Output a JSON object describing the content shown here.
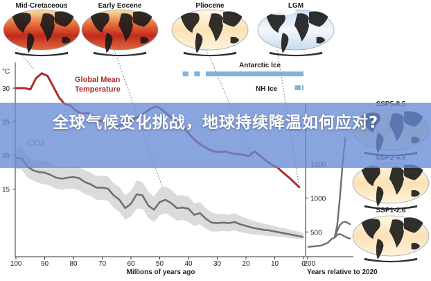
{
  "banner": {
    "title": "全球气候变化挑战，地球持续降温如何应对?"
  },
  "maps": [
    {
      "label": "Mid-Cretaceous",
      "style": "hot"
    },
    {
      "label": "Early Eocene",
      "style": "hot"
    },
    {
      "label": "Pliocene",
      "style": "warm"
    },
    {
      "label": "LGM",
      "style": "cold"
    },
    {
      "label": "SSP5-8.5",
      "style": "warm"
    },
    {
      "label": "SSP2-4.5",
      "style": "warm"
    },
    {
      "label": "SSP1-2.6",
      "style": "warm"
    }
  ],
  "chart_data": {
    "type": "line",
    "left_panel": {
      "xlabel": "Millions of years ago",
      "xticks": [
        100,
        90,
        80,
        70,
        60,
        50,
        40,
        30,
        20,
        10,
        0
      ],
      "xlim": [
        100,
        0
      ],
      "y_unit_label": "°C",
      "yticks": [
        30,
        25,
        20,
        15
      ],
      "ylim": [
        11.5,
        32.5
      ],
      "series": [
        {
          "name": "Global Mean Temperature",
          "color": "#b02a2a",
          "x": [
            100,
            97,
            95,
            93,
            91,
            89,
            87,
            85,
            83,
            81,
            79,
            77,
            75,
            73,
            71,
            69,
            67,
            65,
            63,
            61,
            59,
            57,
            55,
            53,
            51,
            49,
            47,
            45,
            43,
            41,
            39,
            37,
            35,
            33,
            31,
            29,
            27,
            25,
            23,
            21,
            19,
            17,
            15,
            13,
            11,
            9,
            7,
            5,
            3,
            1.5
          ],
          "y": [
            30,
            30,
            29.8,
            31.5,
            32.2,
            31.8,
            30.2,
            28.6,
            27.6,
            27.4,
            26.6,
            26.2,
            26.3,
            25.8,
            25.2,
            24.9,
            24.4,
            24.3,
            24.6,
            24.9,
            25.4,
            25.8,
            26.4,
            27.0,
            27.3,
            26.7,
            26.0,
            25.3,
            24.6,
            23.8,
            22.8,
            22.0,
            21.4,
            20.9,
            20.6,
            20.5,
            20.6,
            20.3,
            20.2,
            20.1,
            19.9,
            20.6,
            19.9,
            19.2,
            18.6,
            18.2,
            17.4,
            16.7,
            15.9,
            15.3
          ]
        }
      ],
      "co2_series": {
        "name": "CO2",
        "x": [
          100,
          98,
          96,
          94,
          92,
          90,
          88,
          86,
          84,
          82,
          80,
          78,
          76,
          74,
          72,
          70,
          68,
          66,
          64,
          62,
          60,
          58,
          56,
          54,
          52,
          50,
          48,
          46,
          44,
          42,
          40,
          38,
          36,
          34,
          32,
          30,
          28,
          26,
          24,
          22,
          20,
          18,
          16,
          14,
          12,
          10,
          8,
          6,
          4,
          2,
          0
        ],
        "y": [
          1550,
          1550,
          1400,
          1330,
          1300,
          1290,
          1250,
          1200,
          1180,
          1200,
          1210,
          1190,
          1120,
          1080,
          1020,
          1020,
          1000,
          880,
          800,
          650,
          730,
          900,
          880,
          700,
          620,
          760,
          800,
          740,
          650,
          660,
          640,
          530,
          560,
          460,
          390,
          380,
          390,
          380,
          400,
          360,
          330,
          300,
          280,
          260,
          250,
          230,
          210,
          190,
          170,
          150,
          130
        ],
        "band_low": [
          1350,
          1350,
          1200,
          1150,
          1100,
          1080,
          1050,
          1000,
          980,
          1000,
          1000,
          970,
          900,
          870,
          800,
          800,
          780,
          660,
          580,
          440,
          500,
          640,
          640,
          480,
          400,
          520,
          560,
          500,
          420,
          440,
          400,
          330,
          360,
          280,
          230,
          230,
          240,
          230,
          250,
          220,
          200,
          180,
          170,
          160,
          150,
          140,
          130,
          120,
          110,
          100,
          80
        ],
        "band_high": [
          1750,
          1750,
          1600,
          1520,
          1500,
          1500,
          1450,
          1400,
          1380,
          1400,
          1420,
          1400,
          1330,
          1290,
          1230,
          1240,
          1220,
          1100,
          1030,
          880,
          960,
          1150,
          1120,
          950,
          860,
          1000,
          1040,
          980,
          880,
          880,
          860,
          740,
          760,
          650,
          570,
          540,
          550,
          530,
          560,
          510,
          470,
          430,
          400,
          370,
          350,
          330,
          300,
          280,
          250,
          230,
          200
        ]
      },
      "ice_bars": [
        {
          "name": "Antarctic Ice",
          "spans": [
            [
              42,
              40
            ],
            [
              38,
              36
            ],
            [
              34,
              0
            ]
          ]
        },
        {
          "name": "NH Ice",
          "spans": [
            [
              3,
              1
            ],
            [
              0.5,
              0
            ]
          ]
        }
      ]
    },
    "right_panel": {
      "xlabel": "Years relative to 2020",
      "xtick_label": "-200",
      "yticks": [
        1500,
        1000,
        500
      ],
      "ylim": [
        330,
        1800
      ],
      "history": {
        "x": [
          -200,
          -100,
          -50,
          -20,
          0
        ],
        "y": [
          280,
          300,
          340,
          400,
          415
        ]
      },
      "scenarios": [
        {
          "name": "SSP5-8.5",
          "x": [
            0,
            20,
            40,
            60,
            80
          ],
          "y": [
            415,
            600,
            1000,
            1500,
            1900
          ]
        },
        {
          "name": "SSP2-4.5",
          "x": [
            0,
            20,
            40,
            60,
            80,
            100,
            120
          ],
          "y": [
            415,
            520,
            600,
            640,
            650,
            630,
            610
          ]
        },
        {
          "name": "SSP1-2.6",
          "x": [
            0,
            20,
            40,
            60,
            80,
            100,
            120
          ],
          "y": [
            415,
            460,
            470,
            450,
            430,
            410,
            400
          ]
        }
      ]
    }
  }
}
